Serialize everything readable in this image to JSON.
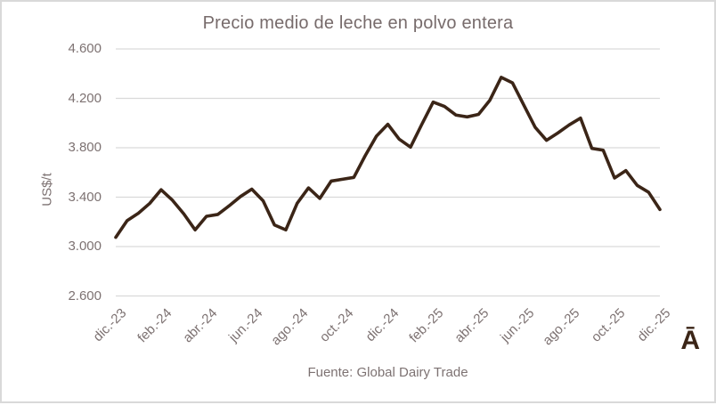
{
  "chart": {
    "logo_text": "Ā"
  },
  "colors": {
    "line": "#3b2517",
    "grid": "#d9d9d9",
    "text": "#7d7272",
    "title_text": "#776b6b",
    "logo": "#3b2517"
  },
  "chart_data": {
    "type": "line",
    "title": "Precio medio de leche en polvo entera",
    "ylabel": "US$/t",
    "xlabel": "",
    "source": "Fuente: Global Dairy Trade",
    "ylim": [
      2600,
      4600
    ],
    "ytick_step": 400,
    "ytick_labels": [
      "2.600",
      "3.000",
      "3.400",
      "3.800",
      "4.200",
      "4.600"
    ],
    "x_tick_labels": [
      "dic.-23",
      "feb.-24",
      "abr.-24",
      "jun.-24",
      "ago.-24",
      "oct.-24",
      "dic.-24",
      "feb.-25",
      "abr.-25",
      "jun.-25",
      "ago.-25",
      "oct.-25",
      "dic.-25"
    ],
    "x_tick_every": 4,
    "grid": true,
    "legend_position": "none",
    "values": [
      3075,
      3210,
      3270,
      3350,
      3460,
      3375,
      3265,
      3135,
      3245,
      3260,
      3330,
      3405,
      3465,
      3370,
      3175,
      3135,
      3350,
      3475,
      3390,
      3530,
      3545,
      3560,
      3735,
      3895,
      3990,
      3870,
      3805,
      3990,
      4170,
      4135,
      4065,
      4050,
      4070,
      4185,
      4370,
      4325,
      4145,
      3965,
      3860,
      3920,
      3985,
      4040,
      3795,
      3780,
      3555,
      3615,
      3495,
      3440,
      3300
    ]
  }
}
